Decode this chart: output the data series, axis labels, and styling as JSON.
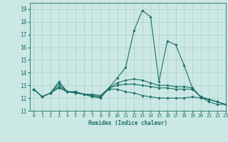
{
  "xlabel": "Humidex (Indice chaleur)",
  "xlim": [
    -0.5,
    23
  ],
  "ylim": [
    11,
    19.5
  ],
  "yticks": [
    11,
    12,
    13,
    14,
    15,
    16,
    17,
    18,
    19
  ],
  "xticks": [
    0,
    1,
    2,
    3,
    4,
    5,
    6,
    7,
    8,
    9,
    10,
    11,
    12,
    13,
    14,
    15,
    16,
    17,
    18,
    19,
    20,
    21,
    22,
    23
  ],
  "background_color": "#cce8e4",
  "grid_color": "#aacfcb",
  "line_color": "#1a7068",
  "lines": [
    [
      12.7,
      12.1,
      12.4,
      13.3,
      12.5,
      12.5,
      12.3,
      12.1,
      12.0,
      12.8,
      13.6,
      14.4,
      17.3,
      18.9,
      18.4,
      13.3,
      16.5,
      16.2,
      14.6,
      12.8,
      12.1,
      11.7,
      11.5,
      11.5
    ],
    [
      12.7,
      12.1,
      12.4,
      12.9,
      12.5,
      12.4,
      12.3,
      12.3,
      12.2,
      12.8,
      13.0,
      13.1,
      13.1,
      13.0,
      12.9,
      12.8,
      12.8,
      12.7,
      12.7,
      12.7,
      12.1,
      11.9,
      11.7,
      11.5
    ],
    [
      12.7,
      12.1,
      12.4,
      13.1,
      12.5,
      12.5,
      12.3,
      12.2,
      12.1,
      12.8,
      13.2,
      13.4,
      13.5,
      13.4,
      13.2,
      13.0,
      13.0,
      12.9,
      12.9,
      12.8,
      12.1,
      11.9,
      11.7,
      11.5
    ],
    [
      12.7,
      12.1,
      12.4,
      12.8,
      12.5,
      12.4,
      12.3,
      12.2,
      12.1,
      12.7,
      12.7,
      12.5,
      12.4,
      12.2,
      12.1,
      12.0,
      12.0,
      12.0,
      12.0,
      12.1,
      12.0,
      11.9,
      11.7,
      11.5
    ]
  ]
}
